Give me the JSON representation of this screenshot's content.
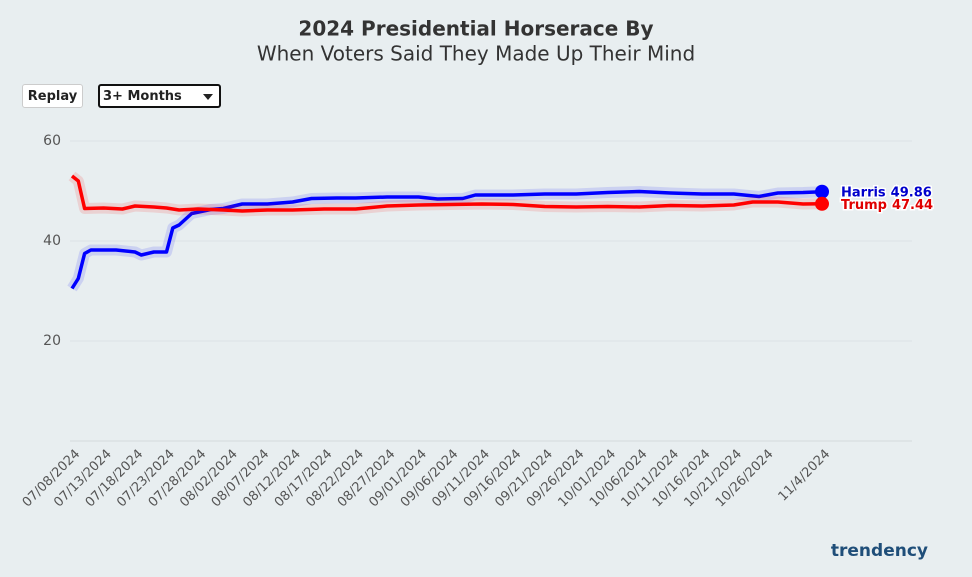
{
  "ui": {
    "replay": "Replay",
    "range": "3+ Months",
    "logo": "trendency"
  },
  "chart_data": {
    "type": "line",
    "title": "2024 Presidential Horserace By",
    "subtitle": "When Voters Said They Made Up Their Mind",
    "ylim": [
      0,
      60
    ],
    "yticks": [
      20,
      40,
      60
    ],
    "grid": true,
    "xlim": [
      "07/08/2024",
      "11/4/2024"
    ],
    "xticks": [
      "07/08/2024",
      "07/13/2024",
      "07/18/2024",
      "07/23/2024",
      "07/28/2024",
      "08/02/2024",
      "08/07/2024",
      "08/12/2024",
      "08/17/2024",
      "08/22/2024",
      "08/27/2024",
      "09/01/2024",
      "09/06/2024",
      "09/11/2024",
      "09/16/2024",
      "09/21/2024",
      "09/26/2024",
      "10/01/2024",
      "10/06/2024",
      "10/11/2024",
      "10/16/2024",
      "10/21/2024",
      "10/26/2024",
      "11/4/2024"
    ],
    "series": [
      {
        "name": "Harris",
        "color": "#0000ff",
        "label_color": "#0000cc",
        "x": [
          "07/08/2024",
          "07/09/2024",
          "07/10/2024",
          "07/11/2024",
          "07/15/2024",
          "07/18/2024",
          "07/19/2024",
          "07/21/2024",
          "07/23/2024",
          "07/24/2024",
          "07/25/2024",
          "07/27/2024",
          "07/30/2024",
          "08/01/2024",
          "08/04/2024",
          "08/08/2024",
          "08/12/2024",
          "08/15/2024",
          "08/19/2024",
          "08/22/2024",
          "08/27/2024",
          "09/01/2024",
          "09/04/2024",
          "09/08/2024",
          "09/10/2024",
          "09/16/2024",
          "09/21/2024",
          "09/26/2024",
          "10/01/2024",
          "10/06/2024",
          "10/11/2024",
          "10/16/2024",
          "10/21/2024",
          "10/25/2024",
          "10/28/2024",
          "11/01/2024",
          "11/4/2024"
        ],
        "values": [
          30.5,
          32.5,
          37.5,
          38.2,
          38.2,
          37.8,
          37.2,
          37.8,
          37.8,
          42.6,
          43.2,
          45.5,
          46.3,
          46.5,
          47.4,
          47.4,
          47.8,
          48.5,
          48.6,
          48.6,
          48.8,
          48.8,
          48.4,
          48.5,
          49.2,
          49.2,
          49.4,
          49.4,
          49.7,
          49.9,
          49.6,
          49.4,
          49.4,
          48.9,
          49.6,
          49.7,
          49.86
        ]
      },
      {
        "name": "Trump",
        "color": "#ff0000",
        "label_color": "#e00000",
        "x": [
          "07/08/2024",
          "07/09/2024",
          "07/10/2024",
          "07/13/2024",
          "07/16/2024",
          "07/18/2024",
          "07/21/2024",
          "07/23/2024",
          "07/25/2024",
          "07/28/2024",
          "08/01/2024",
          "08/04/2024",
          "08/08/2024",
          "08/12/2024",
          "08/17/2024",
          "08/22/2024",
          "08/27/2024",
          "09/01/2024",
          "09/06/2024",
          "09/11/2024",
          "09/16/2024",
          "09/21/2024",
          "09/26/2024",
          "10/01/2024",
          "10/06/2024",
          "10/11/2024",
          "10/16/2024",
          "10/21/2024",
          "10/24/2024",
          "10/28/2024",
          "11/01/2024",
          "11/4/2024"
        ],
        "values": [
          53,
          52,
          46.5,
          46.6,
          46.4,
          47,
          46.8,
          46.6,
          46.2,
          46.4,
          46.2,
          46,
          46.2,
          46.2,
          46.4,
          46.4,
          47,
          47.2,
          47.3,
          47.4,
          47.3,
          46.9,
          46.8,
          46.9,
          46.8,
          47.1,
          47,
          47.2,
          47.8,
          47.8,
          47.4,
          47.44
        ]
      }
    ]
  }
}
